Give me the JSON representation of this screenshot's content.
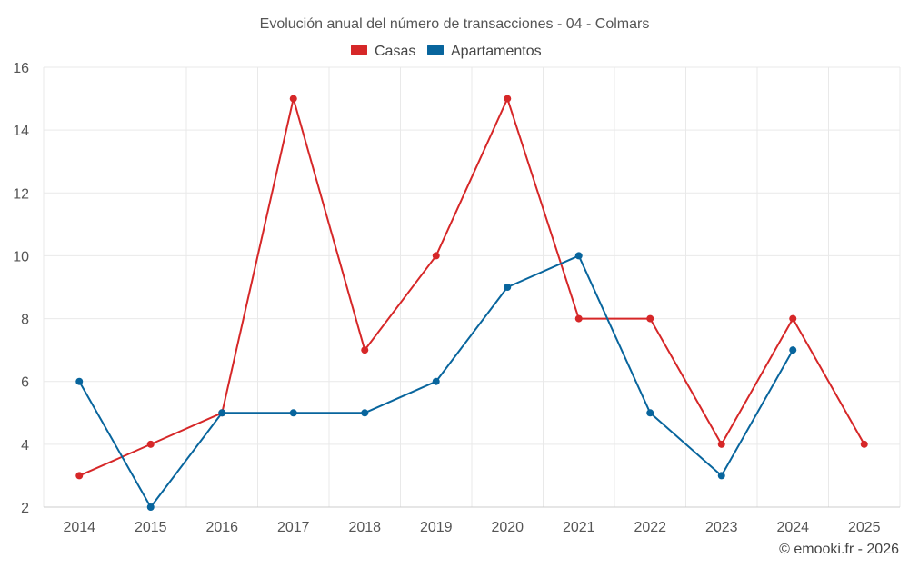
{
  "chart_data": {
    "type": "line",
    "title": "Evolución anual del número de transacciones - 04 - Colmars",
    "xlabel": "",
    "ylabel": "",
    "categories": [
      "2014",
      "2015",
      "2016",
      "2017",
      "2018",
      "2019",
      "2020",
      "2021",
      "2022",
      "2023",
      "2024",
      "2025"
    ],
    "ylim": [
      2,
      16
    ],
    "yticks": [
      "2",
      "4",
      "6",
      "8",
      "10",
      "12",
      "14",
      "16"
    ],
    "grid": true,
    "legend_position": "top-center",
    "series": [
      {
        "name": "Casas",
        "color": "#d62728",
        "values": [
          3,
          4,
          5,
          15,
          7,
          10,
          15,
          8,
          8,
          4,
          8,
          4
        ]
      },
      {
        "name": "Apartamentos",
        "color": "#08659d",
        "values": [
          6,
          2,
          5,
          5,
          5,
          6,
          9,
          10,
          5,
          3,
          7,
          null
        ]
      }
    ]
  },
  "credit": "© emooki.fr - 2026"
}
